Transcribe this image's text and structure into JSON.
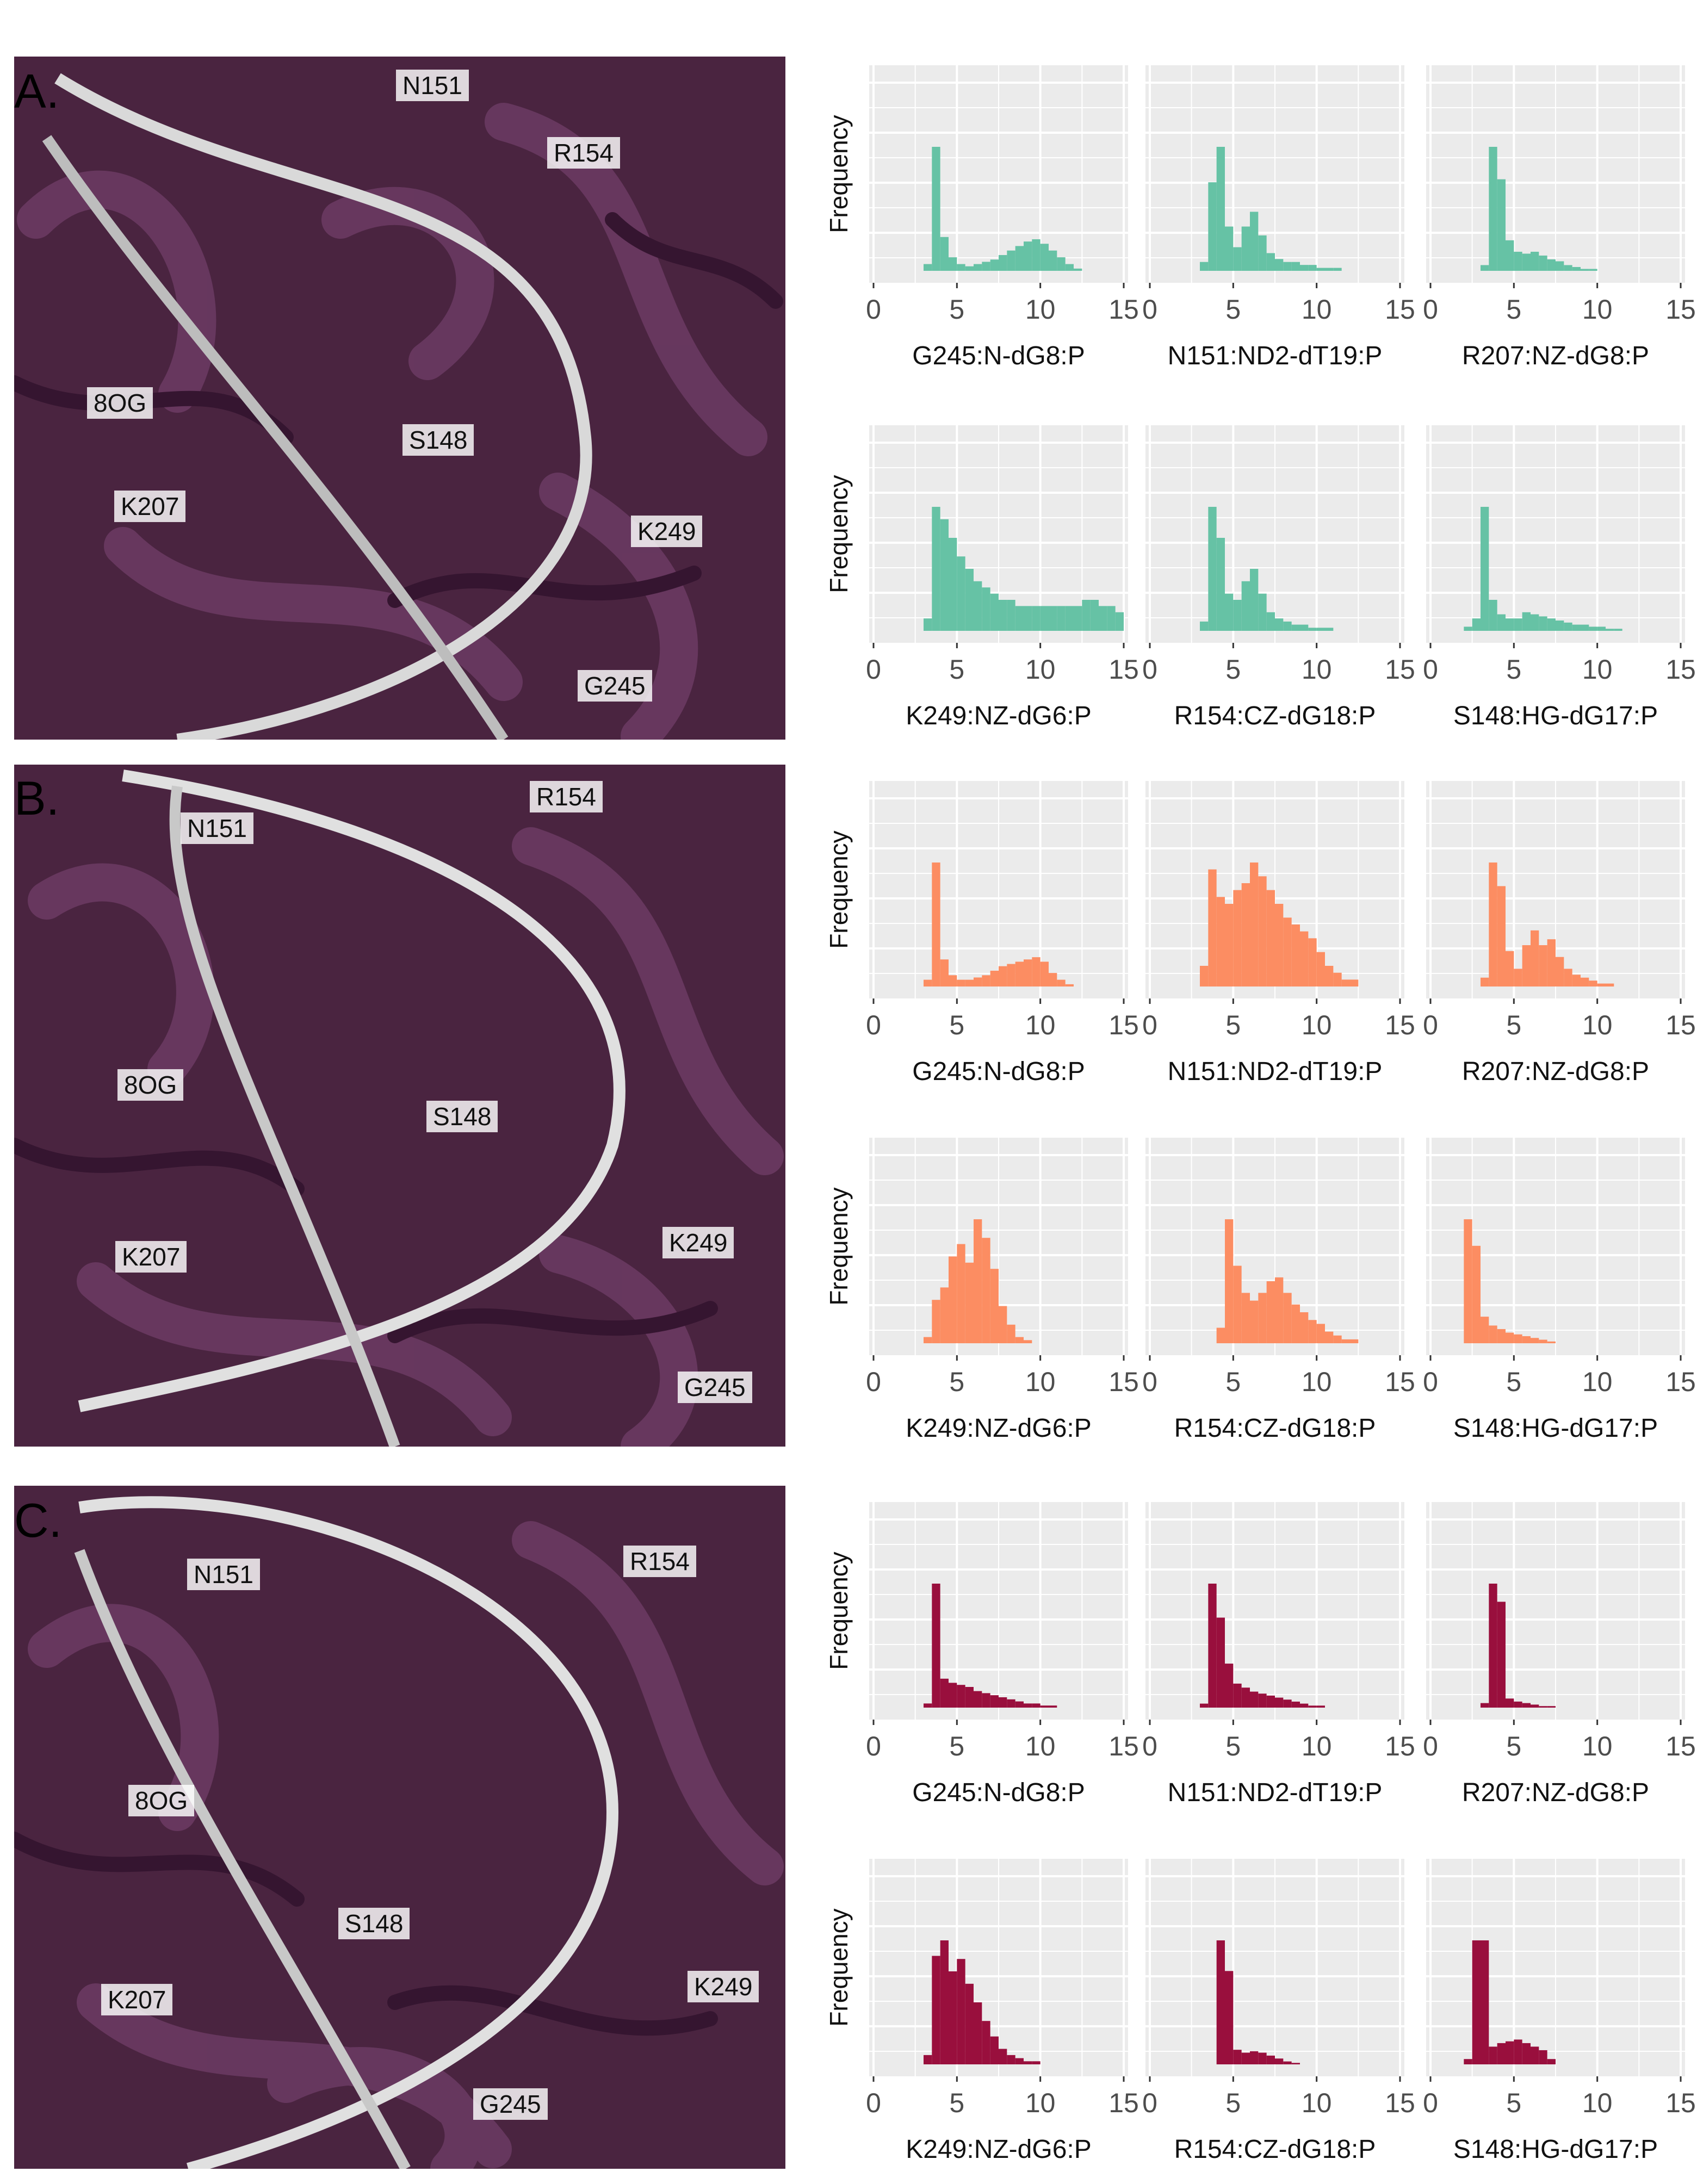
{
  "panels": [
    {
      "letter": "A.",
      "residues": [
        "N151",
        "R154",
        "8OG",
        "S148",
        "K207",
        "K249",
        "G245"
      ]
    },
    {
      "letter": "B.",
      "residues": [
        "N151",
        "R154",
        "8OG",
        "S148",
        "K207",
        "K249",
        "G245"
      ]
    },
    {
      "letter": "C.",
      "residues": [
        "N151",
        "R154",
        "8OG",
        "S148",
        "K207",
        "K249",
        "G245"
      ]
    }
  ],
  "colors": {
    "A": "#66c2a5",
    "B": "#fc8d62",
    "C": "#990f3d",
    "protein": "#4a2440",
    "plot_bg": "#ebebeb"
  },
  "chart_data": [
    {
      "panel": "A",
      "type": "bar",
      "title": "G245:N-dG8:P",
      "xlabel": "G245:N-dG8:P",
      "ylabel": "Frequency",
      "xlim": [
        0,
        15
      ],
      "xticks": [
        0,
        5,
        10,
        15
      ],
      "bins": [
        3,
        3.5,
        4,
        4.5,
        5,
        5.5,
        6,
        6.5,
        7,
        7.5,
        8,
        8.5,
        9,
        9.5,
        10,
        10.5,
        11,
        11.5,
        12
      ],
      "values": [
        3,
        55,
        15,
        6,
        3,
        2,
        3,
        4,
        5,
        7,
        9,
        11,
        13,
        14,
        12,
        9,
        6,
        3,
        1
      ]
    },
    {
      "panel": "A",
      "type": "bar",
      "title": "N151:ND2-dT19:P",
      "xlabel": "N151:ND2-dT19:P",
      "ylabel": "Frequency",
      "xlim": [
        0,
        15
      ],
      "xticks": [
        0,
        5,
        10,
        15
      ],
      "bins": [
        3,
        3.5,
        4,
        4.5,
        5,
        5.5,
        6,
        6.5,
        7,
        7.5,
        8,
        8.5,
        9,
        9.5,
        10,
        10.5,
        11,
        11.5,
        12
      ],
      "values": [
        3,
        30,
        42,
        15,
        8,
        15,
        20,
        12,
        6,
        4,
        3,
        3,
        2,
        2,
        1,
        1,
        1,
        0,
        0
      ]
    },
    {
      "panel": "A",
      "type": "bar",
      "title": "R207:NZ-dG8:P",
      "xlabel": "R207:NZ-dG8:P",
      "ylabel": "Frequency",
      "xlim": [
        0,
        15
      ],
      "xticks": [
        0,
        5,
        10,
        15
      ],
      "bins": [
        3,
        3.5,
        4,
        4.5,
        5,
        5.5,
        6,
        6.5,
        7,
        7.5,
        8,
        8.5,
        9,
        9.5,
        10,
        10.5,
        11,
        11.5,
        12
      ],
      "values": [
        3,
        65,
        48,
        16,
        10,
        9,
        10,
        8,
        6,
        5,
        3,
        2,
        1,
        1,
        0,
        0,
        0,
        0,
        0
      ]
    },
    {
      "panel": "A",
      "type": "bar",
      "title": "K249:NZ-dG6:P",
      "xlabel": "K249:NZ-dG6:P",
      "ylabel": "Frequency",
      "xlim": [
        0,
        15
      ],
      "xticks": [
        0,
        5,
        10,
        15
      ],
      "bins": [
        3,
        3.5,
        4,
        4.5,
        5,
        5.5,
        6,
        6.5,
        7,
        7.5,
        8,
        8.5,
        9,
        9.5,
        10,
        10.5,
        11,
        11.5,
        12,
        12.5,
        13,
        13.5,
        14,
        14.5
      ],
      "values": [
        2,
        20,
        18,
        15,
        12,
        10,
        8,
        7,
        6,
        5,
        5,
        4,
        4,
        4,
        4,
        4,
        4,
        4,
        4,
        5,
        5,
        4,
        4,
        3
      ]
    },
    {
      "panel": "A",
      "type": "bar",
      "title": "R154:CZ-dG18:P",
      "xlabel": "R154:CZ-dG18:P",
      "ylabel": "Frequency",
      "xlim": [
        0,
        15
      ],
      "xticks": [
        0,
        5,
        10,
        15
      ],
      "bins": [
        3,
        3.5,
        4,
        4.5,
        5,
        5.5,
        6,
        6.5,
        7,
        7.5,
        8,
        8.5,
        9,
        9.5,
        10,
        10.5,
        11,
        11.5,
        12
      ],
      "values": [
        3,
        40,
        30,
        12,
        10,
        16,
        20,
        12,
        6,
        4,
        3,
        2,
        2,
        1,
        1,
        1,
        0,
        0,
        0
      ]
    },
    {
      "panel": "A",
      "type": "bar",
      "title": "S148:HG-dG17:P",
      "xlabel": "S148:HG-dG17:P",
      "ylabel": "Frequency",
      "xlim": [
        0,
        15
      ],
      "xticks": [
        0,
        5,
        10,
        15
      ],
      "bins": [
        2,
        2.5,
        3,
        3.5,
        4,
        4.5,
        5,
        5.5,
        6,
        6.5,
        7,
        7.5,
        8,
        8.5,
        9,
        9.5,
        10,
        10.5,
        11,
        11.5,
        12
      ],
      "values": [
        2,
        6,
        60,
        15,
        8,
        6,
        6,
        9,
        8,
        7,
        6,
        5,
        4,
        3,
        3,
        2,
        2,
        1,
        1,
        0,
        0
      ]
    },
    {
      "panel": "B",
      "type": "bar",
      "title": "G245:N-dG8:P",
      "xlabel": "G245:N-dG8:P",
      "ylabel": "Frequency",
      "xlim": [
        0,
        15
      ],
      "xticks": [
        0,
        5,
        10,
        15
      ],
      "bins": [
        3,
        3.5,
        4,
        4.5,
        5,
        5.5,
        6,
        6.5,
        7,
        7.5,
        8,
        8.5,
        9,
        9.5,
        10,
        10.5,
        11,
        11.5,
        12
      ],
      "values": [
        3,
        55,
        12,
        5,
        3,
        3,
        4,
        5,
        7,
        9,
        10,
        11,
        12,
        13,
        11,
        6,
        3,
        1,
        0
      ]
    },
    {
      "panel": "B",
      "type": "bar",
      "title": "N151:ND2-dT19:P",
      "xlabel": "N151:ND2-dT19:P",
      "ylabel": "Frequency",
      "xlim": [
        0,
        15
      ],
      "xticks": [
        0,
        5,
        10,
        15
      ],
      "bins": [
        3,
        3.5,
        4,
        4.5,
        5,
        5.5,
        6,
        6.5,
        7,
        7.5,
        8,
        8.5,
        9,
        9.5,
        10,
        10.5,
        11,
        11.5,
        12
      ],
      "values": [
        3,
        17,
        13,
        12,
        14,
        15,
        18,
        16,
        14,
        12,
        10,
        9,
        8,
        7,
        5,
        3,
        2,
        1,
        1
      ]
    },
    {
      "panel": "B",
      "type": "bar",
      "title": "R207:NZ-dG8:P",
      "xlabel": "R207:NZ-dG8:P",
      "ylabel": "Frequency",
      "xlim": [
        0,
        15
      ],
      "xticks": [
        0,
        5,
        10,
        15
      ],
      "bins": [
        3,
        3.5,
        4,
        4.5,
        5,
        5.5,
        6,
        6.5,
        7,
        7.5,
        8,
        8.5,
        9,
        9.5,
        10,
        10.5,
        11,
        11.5,
        12
      ],
      "values": [
        3,
        42,
        34,
        12,
        6,
        14,
        19,
        14,
        16,
        10,
        6,
        4,
        3,
        2,
        1,
        1,
        0,
        0,
        0
      ]
    },
    {
      "panel": "B",
      "type": "bar",
      "title": "K249:NZ-dG6:P",
      "xlabel": "K249:NZ-dG6:P",
      "ylabel": "Frequency",
      "xlim": [
        0,
        15
      ],
      "xticks": [
        0,
        5,
        10,
        15
      ],
      "bins": [
        3,
        3.5,
        4,
        4.5,
        5,
        5.5,
        6,
        6.5,
        7,
        7.5,
        8,
        8.5,
        9
      ],
      "values": [
        2,
        14,
        18,
        28,
        32,
        26,
        40,
        34,
        24,
        12,
        6,
        2,
        1
      ]
    },
    {
      "panel": "B",
      "type": "bar",
      "title": "R154:CZ-dG18:P",
      "xlabel": "R154:CZ-dG18:P",
      "ylabel": "Frequency",
      "xlim": [
        0,
        15
      ],
      "xticks": [
        0,
        5,
        10,
        15
      ],
      "bins": [
        4,
        4.5,
        5,
        5.5,
        6,
        6.5,
        7,
        7.5,
        8,
        8.5,
        9,
        9.5,
        10,
        10.5,
        11,
        11.5,
        12
      ],
      "values": [
        4,
        32,
        20,
        13,
        11,
        13,
        16,
        17,
        13,
        10,
        8,
        6,
        5,
        3,
        2,
        1,
        1
      ]
    },
    {
      "panel": "B",
      "type": "bar",
      "title": "S148:HG-dG17:P",
      "xlabel": "S148:HG-dG17:P",
      "ylabel": "Frequency",
      "xlim": [
        0,
        15
      ],
      "xticks": [
        0,
        5,
        10,
        15
      ],
      "bins": [
        2,
        2.5,
        3,
        3.5,
        4,
        4.5,
        5,
        5.5,
        6,
        6.5,
        7
      ],
      "values": [
        70,
        55,
        15,
        10,
        8,
        6,
        5,
        4,
        3,
        2,
        1
      ]
    },
    {
      "panel": "C",
      "type": "bar",
      "title": "G245:N-dG8:P",
      "xlabel": "G245:N-dG8:P",
      "ylabel": "Frequency",
      "xlim": [
        0,
        15
      ],
      "xticks": [
        0,
        5,
        10,
        15
      ],
      "bins": [
        3,
        3.5,
        4,
        4.5,
        5,
        5.5,
        6,
        6.5,
        7,
        7.5,
        8,
        8.5,
        9,
        9.5,
        10,
        10.5,
        11
      ],
      "values": [
        2,
        60,
        14,
        12,
        11,
        10,
        8,
        7,
        6,
        5,
        4,
        3,
        2,
        2,
        1,
        1,
        0
      ]
    },
    {
      "panel": "C",
      "type": "bar",
      "title": "N151:ND2-dT19:P",
      "xlabel": "N151:ND2-dT19:P",
      "ylabel": "Frequency",
      "xlim": [
        0,
        15
      ],
      "xticks": [
        0,
        5,
        10,
        15
      ],
      "bins": [
        3,
        3.5,
        4,
        4.5,
        5,
        5.5,
        6,
        6.5,
        7,
        7.5,
        8,
        8.5,
        9,
        9.5,
        10,
        10.5,
        11
      ],
      "values": [
        2,
        62,
        45,
        22,
        12,
        10,
        8,
        7,
        6,
        5,
        4,
        3,
        2,
        1,
        1,
        0,
        0
      ]
    },
    {
      "panel": "C",
      "type": "bar",
      "title": "R207:NZ-dG8:P",
      "xlabel": "R207:NZ-dG8:P",
      "ylabel": "Frequency",
      "xlim": [
        0,
        15
      ],
      "xticks": [
        0,
        5,
        10,
        15
      ],
      "bins": [
        3,
        3.5,
        4,
        4.5,
        5,
        5.5,
        6,
        6.5,
        7,
        7.5,
        8
      ],
      "values": [
        3,
        82,
        70,
        6,
        4,
        3,
        2,
        1,
        1,
        0,
        0
      ]
    },
    {
      "panel": "C",
      "type": "bar",
      "title": "K249:NZ-dG6:P",
      "xlabel": "K249:NZ-dG6:P",
      "ylabel": "Frequency",
      "xlim": [
        0,
        15
      ],
      "xticks": [
        0,
        5,
        10,
        15
      ],
      "bins": [
        3,
        3.5,
        4,
        4.5,
        5,
        5.5,
        6,
        6.5,
        7,
        7.5,
        8,
        8.5,
        9,
        9.5,
        10
      ],
      "values": [
        3,
        35,
        40,
        30,
        34,
        26,
        20,
        14,
        9,
        5,
        3,
        2,
        1,
        1,
        0
      ]
    },
    {
      "panel": "C",
      "type": "bar",
      "title": "R154:CZ-dG18:P",
      "xlabel": "R154:CZ-dG18:P",
      "ylabel": "Frequency",
      "xlim": [
        0,
        15
      ],
      "xticks": [
        0,
        5,
        10,
        15
      ],
      "bins": [
        4,
        4.5,
        5,
        5.5,
        6,
        6.5,
        7,
        7.5,
        8,
        8.5,
        9
      ],
      "values": [
        85,
        64,
        10,
        8,
        9,
        8,
        6,
        4,
        2,
        1,
        0
      ]
    },
    {
      "panel": "C",
      "type": "bar",
      "title": "S148:HG-dG17:P",
      "xlabel": "S148:HG-dG17:P",
      "ylabel": "Frequency",
      "xlim": [
        0,
        15
      ],
      "xticks": [
        0,
        5,
        10,
        15
      ],
      "bins": [
        2,
        2.5,
        3,
        3.5,
        4,
        4.5,
        5,
        5.5,
        6,
        6.5,
        7
      ],
      "values": [
        3,
        70,
        70,
        10,
        12,
        13,
        14,
        12,
        10,
        8,
        3
      ]
    }
  ]
}
